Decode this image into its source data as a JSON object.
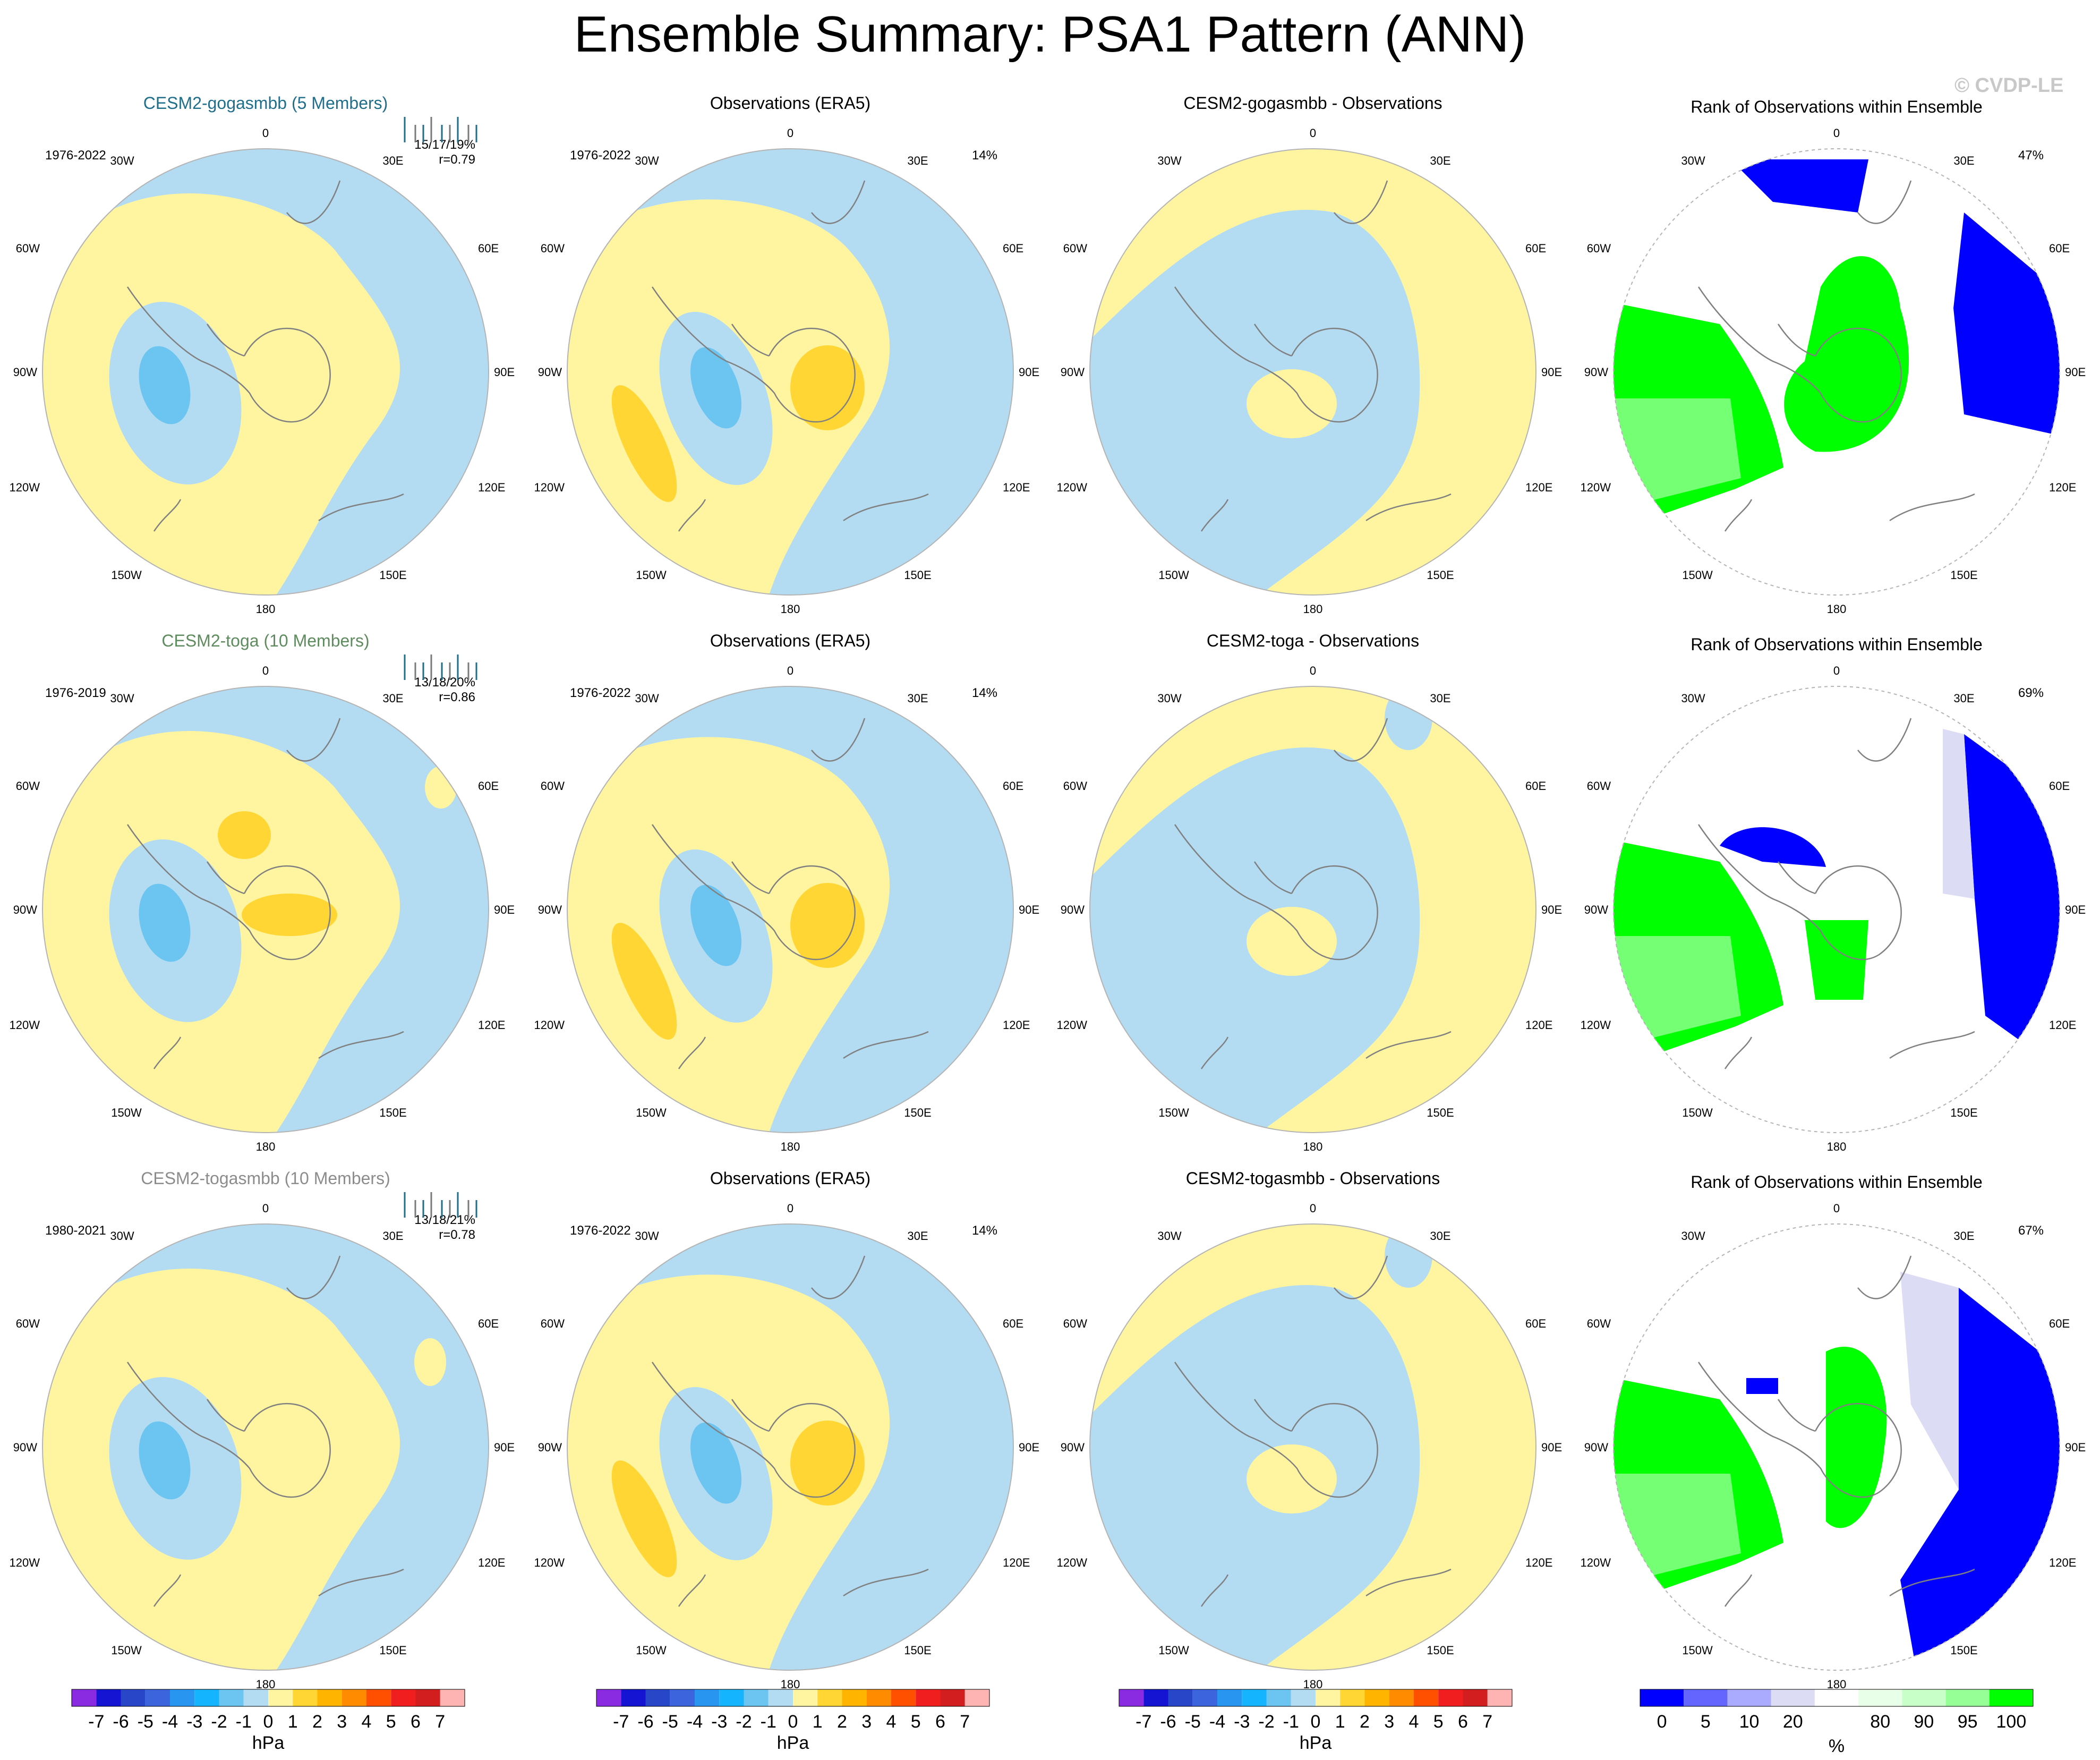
{
  "title": "Ensemble Summary: PSA1 Pattern (ANN)",
  "watermark": "© CVDP-LE",
  "colors": {
    "land_outline": "#808080",
    "yellow_light": "#fff5a0",
    "yellow_mid": "#ffd633",
    "blue_light": "#b3dcf2",
    "blue_mid": "#6cc5f0",
    "rank_green": "#00ff00",
    "rank_blue": "#0000ff",
    "rank_lavender": "#dcdcf5",
    "rank_palegreen": "#e8ffe8",
    "title_gogasmbb": "#1f6e8c",
    "title_toga": "#5e8c5e",
    "title_togasmbb": "#8c8c8c"
  },
  "polar_labels": {
    "top": "0",
    "upper_left": "30W",
    "upper_right": "30E",
    "mid_left_high": "60W",
    "mid_right_high": "60E",
    "left": "90W",
    "right": "90E",
    "mid_left_low": "120W",
    "mid_right_low": "120E",
    "lower_left": "150W",
    "lower_right": "150E",
    "bottom": "180"
  },
  "rows": [
    {
      "model": {
        "title": "CESM2-gogasmbb (5 Members)",
        "title_color": "#1f6e8c",
        "years": "1976-2022",
        "stats": "15/17/19%",
        "corr": "r=0.79"
      },
      "obs": {
        "title": "Observations (ERA5)",
        "years": "1976-2022",
        "pct": "14%"
      },
      "diff": {
        "title": "CESM2-gogasmbb - Observations"
      },
      "rank": {
        "title": "Rank of Observations within Ensemble",
        "pct": "47%"
      }
    },
    {
      "model": {
        "title": "CESM2-toga (10 Members)",
        "title_color": "#5e8c5e",
        "years": "1976-2019",
        "stats": "13/18/20%",
        "corr": "r=0.86"
      },
      "obs": {
        "title": "Observations (ERA5)",
        "years": "1976-2022",
        "pct": "14%"
      },
      "diff": {
        "title": "CESM2-toga - Observations"
      },
      "rank": {
        "title": "Rank of Observations within Ensemble",
        "pct": "69%"
      }
    },
    {
      "model": {
        "title": "CESM2-togasmbb (10 Members)",
        "title_color": "#8c8c8c",
        "years": "1980-2021",
        "stats": "13/18/21%",
        "corr": "r=0.78"
      },
      "obs": {
        "title": "Observations (ERA5)",
        "years": "1976-2022",
        "pct": "14%"
      },
      "diff": {
        "title": "CESM2-togasmbb - Observations"
      },
      "rank": {
        "title": "Rank of Observations within Ensemble",
        "pct": "67%"
      }
    }
  ],
  "chart_data": {
    "type": "heatmap",
    "projection": "south polar stereographic",
    "panels_grid": "3 rows x 4 columns",
    "hpa_colorbar": {
      "unit": "hPa",
      "levels": [
        -7,
        -6,
        -5,
        -4,
        -3,
        -2,
        -1,
        0,
        1,
        2,
        3,
        4,
        5,
        6,
        7
      ],
      "tick_labels": [
        "-7",
        "-6",
        "-5",
        "-4",
        "-3",
        "-2",
        "-1",
        "0",
        "1",
        "2",
        "3",
        "4",
        "5",
        "6",
        "7"
      ],
      "colors": [
        "#8a2be2",
        "#1414d2",
        "#2846c8",
        "#3c64dc",
        "#2896f0",
        "#14b4ff",
        "#6cc5f0",
        "#b3dcf2",
        "#fff5a0",
        "#ffd633",
        "#ffb400",
        "#ff8c00",
        "#ff5000",
        "#f01e1e",
        "#d21e1e",
        "#ffb4b4"
      ]
    },
    "rank_colorbar": {
      "unit": "%",
      "tick_labels": [
        "0",
        "5",
        "10",
        "20",
        "80",
        "90",
        "95",
        "100"
      ],
      "bins": [
        "0-5",
        "5-10",
        "10-20",
        "20-80",
        "80-90",
        "90-95",
        "95-100"
      ],
      "colors": [
        "#0000ff",
        "#6464ff",
        "#aaaaff",
        "#dcdcf5",
        "#ffffff",
        "#e8ffe8",
        "#c8ffc8",
        "#96ff96",
        "#00ff00"
      ]
    }
  }
}
